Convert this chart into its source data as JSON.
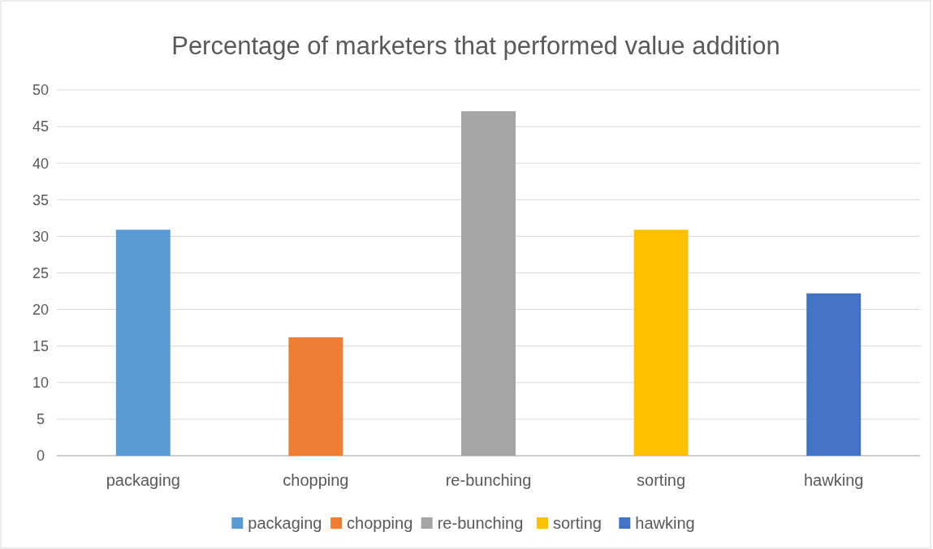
{
  "chart_data": {
    "type": "bar",
    "title": "Percentage of marketers that performed value addition",
    "categories": [
      "packaging",
      "chopping",
      "re-bunching",
      "sorting",
      "hawking"
    ],
    "series": [
      {
        "name": "packaging",
        "color": "#5b9bd5",
        "values": [
          30.9,
          null,
          null,
          null,
          null
        ]
      },
      {
        "name": "chopping",
        "color": "#ed7d31",
        "values": [
          null,
          16.2,
          null,
          null,
          null
        ]
      },
      {
        "name": "re-bunching",
        "color": "#a5a5a5",
        "values": [
          null,
          null,
          47.1,
          null,
          null
        ]
      },
      {
        "name": "sorting",
        "color": "#ffc000",
        "values": [
          null,
          null,
          null,
          30.9,
          null
        ]
      },
      {
        "name": "hawking",
        "color": "#4472c4",
        "values": [
          null,
          null,
          null,
          null,
          22.2
        ]
      }
    ],
    "ylim": [
      0,
      50
    ],
    "yticks": [
      0,
      5,
      10,
      15,
      20,
      25,
      30,
      35,
      40,
      45,
      50
    ],
    "grid": "y",
    "legend": "bottom"
  }
}
